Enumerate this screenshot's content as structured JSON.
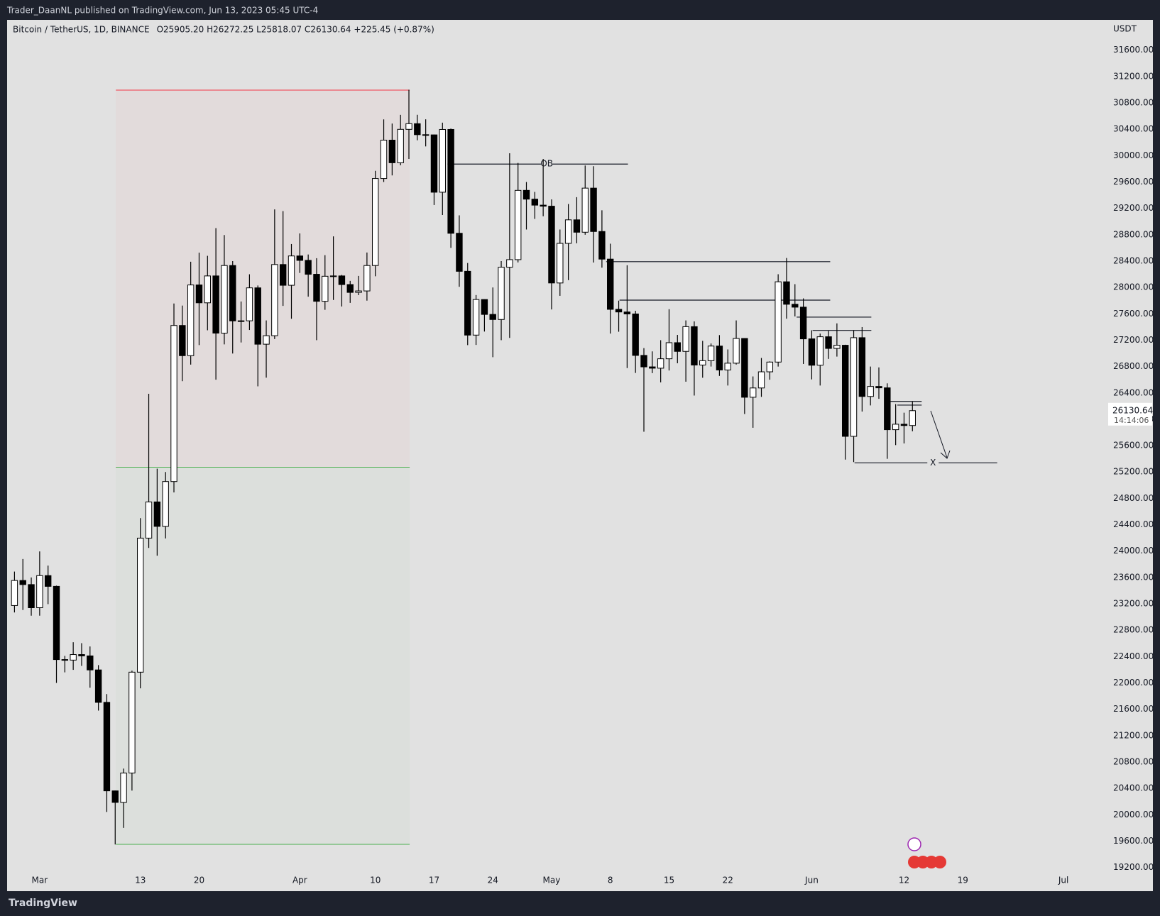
{
  "header": {
    "publisher": "Trader_DaanNL published on TradingView.com, Jun 13, 2023 05:45 UTC-4",
    "brand": "TradingView"
  },
  "chart_data": {
    "type": "candlestick",
    "symbol": "Bitcoin / TetherUS, 1D, BINANCE",
    "ohlc_text": "O25905.20 H26272.25 L25818.07 C26130.64 +225.45 (+0.87%)",
    "currency": "USDT",
    "last_price": 26130.64,
    "countdown": "14:14:06",
    "up_color": "#ffffff",
    "down_color": "#000000",
    "wick_color": "#000000",
    "grid": false,
    "xlim": [
      -3.88,
      127.07
    ],
    "ylim": [
      19120,
      32060
    ],
    "xticks": [
      {
        "value": 0,
        "label": "Mar"
      },
      {
        "value": 12,
        "label": "13"
      },
      {
        "value": 19,
        "label": "20"
      },
      {
        "value": 31,
        "label": "Apr"
      },
      {
        "value": 40,
        "label": "10"
      },
      {
        "value": 47,
        "label": "17"
      },
      {
        "value": 54,
        "label": "24"
      },
      {
        "value": 61,
        "label": "May"
      },
      {
        "value": 68,
        "label": "8"
      },
      {
        "value": 75,
        "label": "15"
      },
      {
        "value": 82,
        "label": "22"
      },
      {
        "value": 92,
        "label": "Jun"
      },
      {
        "value": 103,
        "label": "12"
      },
      {
        "value": 110,
        "label": "19"
      },
      {
        "value": 122,
        "label": "Jul"
      }
    ],
    "yticks": [
      {
        "value": 19200,
        "label": "19200.00"
      },
      {
        "value": 19600,
        "label": "19600.00"
      },
      {
        "value": 20000,
        "label": "20000.00"
      },
      {
        "value": 20400,
        "label": "20400.00"
      },
      {
        "value": 20800,
        "label": "20800.00"
      },
      {
        "value": 21200,
        "label": "21200.00"
      },
      {
        "value": 21600,
        "label": "21600.00"
      },
      {
        "value": 22000,
        "label": "22000.00"
      },
      {
        "value": 22400,
        "label": "22400.00"
      },
      {
        "value": 22800,
        "label": "22800.00"
      },
      {
        "value": 23200,
        "label": "23200.00"
      },
      {
        "value": 23600,
        "label": "23600.00"
      },
      {
        "value": 24000,
        "label": "24000.00"
      },
      {
        "value": 24400,
        "label": "24400.00"
      },
      {
        "value": 24800,
        "label": "24800.00"
      },
      {
        "value": 25200,
        "label": "25200.00"
      },
      {
        "value": 25600,
        "label": "25600.00"
      },
      {
        "value": 26000,
        "label": "26000.00"
      },
      {
        "value": 26400,
        "label": "26400.00"
      },
      {
        "value": 26800,
        "label": "26800.00"
      },
      {
        "value": 27200,
        "label": "27200.00"
      },
      {
        "value": 27600,
        "label": "27600.00"
      },
      {
        "value": 28000,
        "label": "28000.00"
      },
      {
        "value": 28400,
        "label": "28400.00"
      },
      {
        "value": 28800,
        "label": "28800.00"
      },
      {
        "value": 29200,
        "label": "29200.00"
      },
      {
        "value": 29600,
        "label": "29600.00"
      },
      {
        "value": 30000,
        "label": "30000.00"
      },
      {
        "value": 30400,
        "label": "30400.00"
      },
      {
        "value": 30800,
        "label": "30800.00"
      },
      {
        "value": 31200,
        "label": "31200.00"
      },
      {
        "value": 31600,
        "label": "31600.00"
      }
    ],
    "x": [
      -3,
      -2,
      -1,
      0,
      1,
      2,
      3,
      4,
      5,
      6,
      7,
      8,
      9,
      10,
      11,
      12,
      13,
      14,
      15,
      16,
      17,
      18,
      19,
      20,
      21,
      22,
      23,
      24,
      25,
      26,
      27,
      28,
      29,
      30,
      31,
      32,
      33,
      34,
      35,
      36,
      37,
      38,
      39,
      40,
      41,
      42,
      43,
      44,
      45,
      46,
      47,
      48,
      49,
      50,
      51,
      52,
      53,
      54,
      55,
      56,
      57,
      58,
      59,
      60,
      61,
      62,
      63,
      64,
      65,
      66,
      67,
      68,
      69,
      70,
      71,
      72,
      73,
      74,
      75,
      76,
      77,
      78,
      79,
      80,
      81,
      82,
      83,
      84,
      85,
      86,
      87,
      88,
      89,
      90,
      91,
      92,
      93,
      94,
      95,
      96,
      97,
      98,
      99,
      100,
      101,
      102,
      103,
      104
    ],
    "open": [
      23174,
      23554,
      23492,
      23141,
      23628,
      23465,
      22354,
      22346,
      22430,
      22410,
      22197,
      21705,
      20362,
      20187,
      20633,
      22163,
      24197,
      24746,
      24375,
      25055,
      27423,
      26965,
      28038,
      27767,
      28175,
      27307,
      28333,
      27493,
      27494,
      27994,
      27139,
      27268,
      28348,
      28033,
      28478,
      28411,
      28200,
      27790,
      28170,
      28175,
      28044,
      27925,
      27947,
      28333,
      29653,
      30235,
      29892,
      30399,
      30485,
      30318,
      30315,
      29445,
      30397,
      28822,
      28245,
      27277,
      27817,
      27591,
      27514,
      28307,
      28422,
      29473,
      29340,
      29249,
      29233,
      28068,
      28669,
      29026,
      28838,
      29507,
      28849,
      28430,
      27668,
      27628,
      27598,
      26969,
      26795,
      26775,
      26918,
      27162,
      27030,
      27405,
      26823,
      26889,
      27111,
      26748,
      26851,
      27226,
      26334,
      26475,
      26720,
      26868,
      28086,
      27745,
      27701,
      27220,
      26820,
      27252,
      27075,
      27123,
      25741,
      27238,
      26346,
      26498,
      26477,
      25842,
      25925,
      25905.2
    ],
    "high": [
      23689,
      23880,
      23600,
      23995,
      23780,
      23476,
      22410,
      22617,
      22603,
      22553,
      22270,
      21830,
      20367,
      20700,
      22185,
      24500,
      26386,
      25250,
      25200,
      27756,
      27725,
      28390,
      28527,
      28480,
      28900,
      28795,
      28400,
      27787,
      28200,
      28030,
      27500,
      29184,
      29159,
      28659,
      28820,
      28500,
      28444,
      28490,
      28775,
      28190,
      28100,
      28175,
      28530,
      29770,
      30550,
      30487,
      30619,
      31000,
      30620,
      30551,
      30320,
      30500,
      30412,
      29094,
      28371,
      27885,
      27820,
      28000,
      28400,
      30036,
      29890,
      29600,
      29450,
      29950,
      29337,
      28879,
      29266,
      29370,
      29850,
      29840,
      29171,
      28664,
      27800,
      28336,
      27646,
      27080,
      27030,
      27200,
      27670,
      27280,
      27500,
      27485,
      27190,
      27150,
      27277,
      27060,
      27500,
      27230,
      26650,
      26930,
      26878,
      28200,
      28447,
      28050,
      27834,
      27350,
      27300,
      27340,
      27455,
      27131,
      27350,
      27399,
      26800,
      26787,
      26545,
      26230,
      26100,
      26272.25
    ],
    "low": [
      23069,
      23106,
      23020,
      23020,
      23195,
      22000,
      22160,
      22198,
      22258,
      21927,
      21580,
      20042,
      19549,
      19800,
      20366,
      21918,
      24048,
      23930,
      24192,
      24890,
      26578,
      26830,
      27125,
      27350,
      26601,
      27136,
      26997,
      27165,
      27355,
      26500,
      26631,
      27217,
      27720,
      27525,
      28220,
      27860,
      27200,
      27661,
      27810,
      27711,
      27766,
      27883,
      27800,
      28170,
      29600,
      29700,
      29853,
      29950,
      30233,
      30140,
      29251,
      29100,
      28600,
      28010,
      27125,
      27128,
      27331,
      26942,
      27200,
      27235,
      28379,
      28879,
      29040,
      29080,
      27666,
      27873,
      28111,
      28670,
      28800,
      28378,
      28300,
      27300,
      27328,
      26777,
      26703,
      25811,
      26700,
      26560,
      26740,
      26850,
      26570,
      26360,
      26630,
      26800,
      26658,
      26512,
      26830,
      26080,
      25871,
      26340,
      26600,
      26800,
      27526,
      27560,
      26839,
      26605,
      26512,
      26916,
      26951,
      25388,
      25351,
      26117,
      26210,
      26310,
      25400,
      25608,
      25633,
      25818.07
    ],
    "close": [
      23554,
      23492,
      23141,
      23628,
      23465,
      22354,
      22346,
      22430,
      22410,
      22197,
      21705,
      20362,
      20187,
      20633,
      22163,
      24197,
      24746,
      24375,
      25055,
      27423,
      26965,
      28038,
      27767,
      28175,
      27307,
      28333,
      27493,
      27494,
      27994,
      27139,
      27268,
      28348,
      28033,
      28478,
      28411,
      28200,
      27790,
      28170,
      28175,
      28044,
      27925,
      27947,
      28333,
      29653,
      30235,
      29892,
      30399,
      30485,
      30318,
      30315,
      29445,
      30397,
      28822,
      28245,
      27277,
      27817,
      27591,
      27514,
      28307,
      28422,
      29473,
      29340,
      29249,
      29233,
      28068,
      28669,
      29026,
      28838,
      29507,
      28849,
      28430,
      27668,
      27628,
      27598,
      26969,
      26795,
      26775,
      26918,
      27162,
      27030,
      27405,
      26823,
      26889,
      27111,
      26748,
      26851,
      27226,
      26334,
      26475,
      26720,
      26868,
      28086,
      27745,
      27701,
      27220,
      26820,
      27252,
      27075,
      27123,
      25741,
      27238,
      26346,
      26498,
      26477,
      25842,
      25925,
      25905.2,
      26130.64
    ],
    "zones": [
      {
        "x": [
          9.08,
          44.09
        ],
        "y": [
          25272,
          30994
        ],
        "color": "#e2dbdb",
        "line_color": "#f23645"
      },
      {
        "x": [
          9.08,
          44.09
        ],
        "y": [
          19550,
          25272
        ],
        "color": "#dcdfdc",
        "line_color": "#4caf50"
      }
    ],
    "hlines": [
      {
        "price": 29872,
        "x": [
          48.6,
          70.1
        ],
        "label": "OB"
      },
      {
        "price": 28391,
        "x": [
          67.5,
          94.2
        ]
      },
      {
        "price": 27808,
        "x": [
          69.1,
          94.2
        ]
      },
      {
        "price": 27550,
        "x": [
          90.2,
          99.1
        ]
      },
      {
        "price": 27348,
        "x": [
          92.1,
          99.1
        ]
      },
      {
        "price": 26271,
        "x": [
          101.4,
          105.1
        ]
      },
      {
        "price": 26215,
        "x": [
          102.2,
          105.1
        ]
      },
      {
        "price": 25339,
        "x": [
          97.1,
          114.1
        ],
        "label": "X"
      }
    ]
  }
}
